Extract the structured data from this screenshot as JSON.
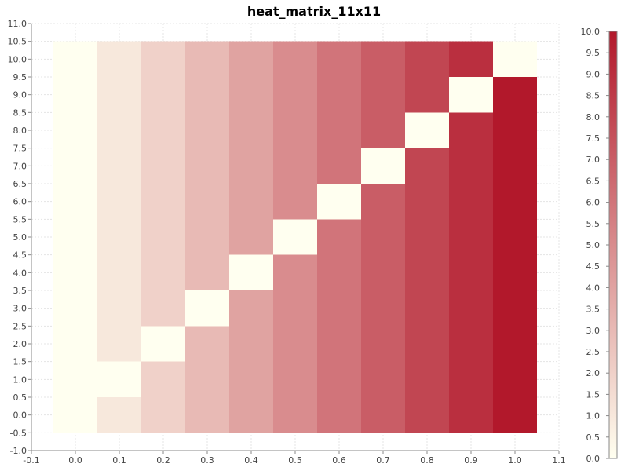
{
  "chart_data": {
    "type": "heatmap",
    "title": "heat_matrix_11x11",
    "x": [
      0.0,
      0.1,
      0.2,
      0.3,
      0.4,
      0.5,
      0.6,
      0.7,
      0.8,
      0.9,
      1.0
    ],
    "y": [
      0,
      1,
      2,
      3,
      4,
      5,
      6,
      7,
      8,
      9,
      10
    ],
    "cell_width": 0.1,
    "cell_height": 1.0,
    "values": [
      [
        0,
        1,
        2,
        3,
        4,
        5,
        6,
        7,
        8,
        9,
        10
      ],
      [
        0,
        0,
        2,
        3,
        4,
        5,
        6,
        7,
        8,
        9,
        10
      ],
      [
        0,
        1,
        0,
        3,
        4,
        5,
        6,
        7,
        8,
        9,
        10
      ],
      [
        0,
        1,
        2,
        0,
        4,
        5,
        6,
        7,
        8,
        9,
        10
      ],
      [
        0,
        1,
        2,
        3,
        0,
        5,
        6,
        7,
        8,
        9,
        10
      ],
      [
        0,
        1,
        2,
        3,
        4,
        0,
        6,
        7,
        8,
        9,
        10
      ],
      [
        0,
        1,
        2,
        3,
        4,
        5,
        0,
        7,
        8,
        9,
        10
      ],
      [
        0,
        1,
        2,
        3,
        4,
        5,
        6,
        0,
        8,
        9,
        10
      ],
      [
        0,
        1,
        2,
        3,
        4,
        5,
        6,
        7,
        0,
        9,
        10
      ],
      [
        0,
        1,
        2,
        3,
        4,
        5,
        6,
        7,
        8,
        0,
        10
      ],
      [
        0,
        1,
        2,
        3,
        4,
        5,
        6,
        7,
        8,
        9,
        0
      ]
    ],
    "xlim": [
      -0.1,
      1.1
    ],
    "ylim": [
      -1.0,
      11.0
    ],
    "x_ticks": [
      "-0.1",
      "0.0",
      "0.1",
      "0.2",
      "0.3",
      "0.4",
      "0.5",
      "0.6",
      "0.7",
      "0.8",
      "0.9",
      "1.0",
      "1.1"
    ],
    "y_ticks": [
      "-1.0",
      "-0.5",
      "0.0",
      "0.5",
      "1.0",
      "1.5",
      "2.0",
      "2.5",
      "3.0",
      "3.5",
      "4.0",
      "4.5",
      "5.0",
      "5.5",
      "6.0",
      "6.5",
      "7.0",
      "7.5",
      "8.0",
      "8.5",
      "9.0",
      "9.5",
      "10.0",
      "10.5",
      "11.0"
    ],
    "color_scale": {
      "min": 0.0,
      "max": 10.0,
      "low_color": "#fffff0",
      "high_color": "#b2182b",
      "ticks": [
        "0.0",
        "0.5",
        "1.0",
        "1.5",
        "2.0",
        "2.5",
        "3.0",
        "3.5",
        "4.0",
        "4.5",
        "5.0",
        "5.5",
        "6.0",
        "6.5",
        "7.0",
        "7.5",
        "8.0",
        "8.5",
        "9.0",
        "9.5",
        "10.0"
      ],
      "placement": "right"
    },
    "grid": true
  }
}
